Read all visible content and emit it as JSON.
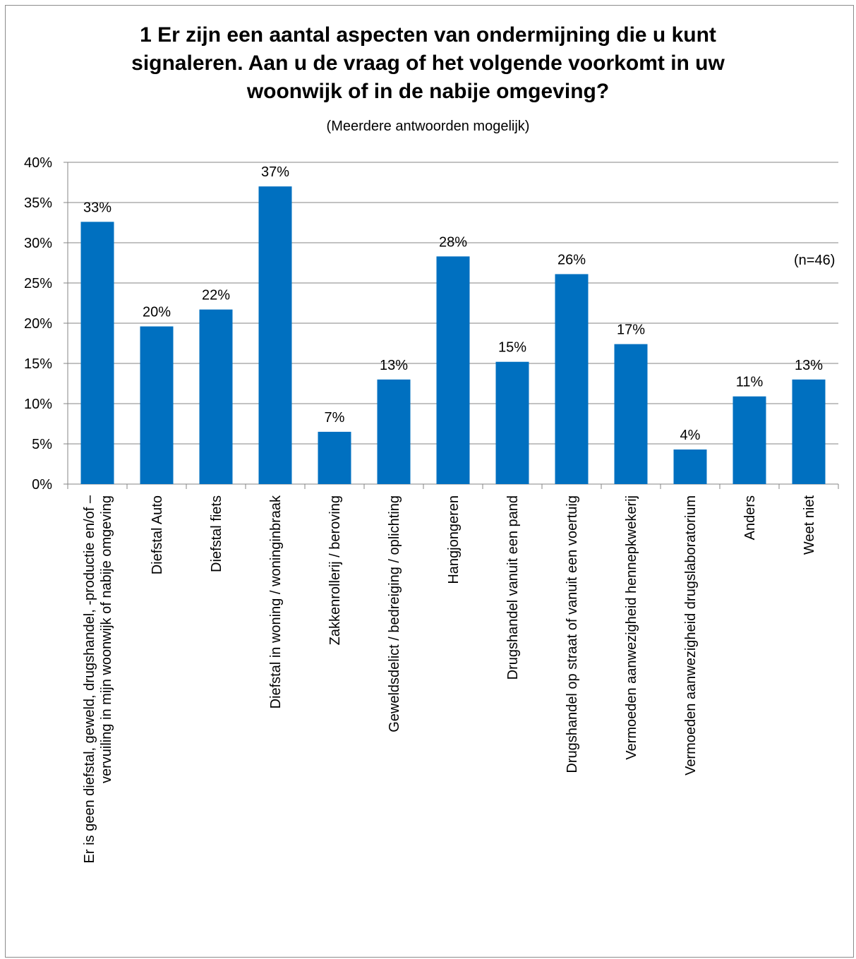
{
  "chart_data": {
    "type": "bar",
    "title_lines": [
      "1 Er zijn een aantal aspecten van ondermijning die u kunt",
      "signaleren. Aan u de vraag of het volgende voorkomt in uw",
      "woonwijk of in de nabije omgeving?"
    ],
    "subtitle": "(Meerdere antwoorden mogelijk)",
    "note": "(n=46)",
    "categories": [
      "Er is geen diefstal, geweld, drugshandel, -productie en/of –|vervuiling in mijn woonwijk of nabije omgeving",
      "Diefstal Auto",
      "Diefstal fiets",
      "Diefstal in woning / woninginbraak",
      "Zakkenrollerij / beroving",
      "Geweldsdelict / bedreiging / oplichting",
      "Hangjongeren",
      "Drugshandel vanuit een pand",
      "Drugshandel op straat of vanuit een voertuig",
      "Vermoeden aanwezigheid hennepkwekerij",
      "Vermoeden aanwezigheid drugslaboratorium",
      "Anders",
      "Weet niet"
    ],
    "values": [
      32.6,
      19.6,
      21.7,
      37.0,
      6.5,
      13.0,
      28.3,
      15.2,
      26.1,
      17.4,
      4.3,
      10.9,
      13.0
    ],
    "data_labels": [
      "33%",
      "20%",
      "22%",
      "37%",
      "7%",
      "13%",
      "28%",
      "15%",
      "26%",
      "17%",
      "4%",
      "11%",
      "13%"
    ],
    "y_ticks": [
      "0%",
      "5%",
      "10%",
      "15%",
      "20%",
      "25%",
      "30%",
      "35%",
      "40%"
    ],
    "ylim": [
      0,
      40
    ],
    "grid": true,
    "colors": {
      "bar": "#0070C0",
      "grid": "#868686",
      "axis": "#868686",
      "text": "#000000"
    }
  }
}
